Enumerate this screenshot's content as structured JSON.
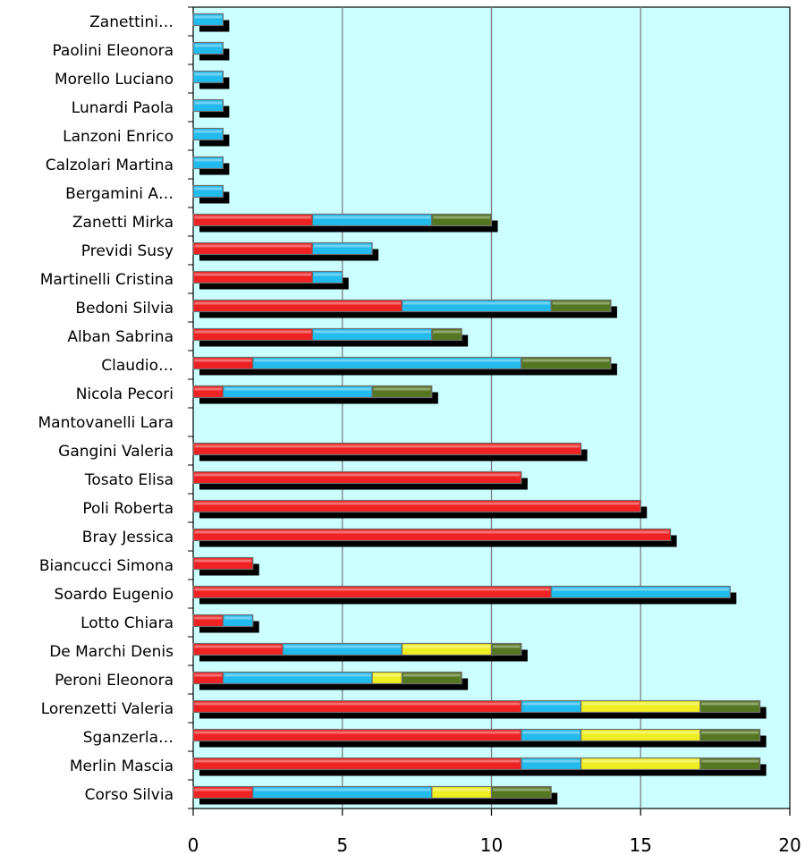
{
  "chart_data": {
    "type": "bar",
    "orientation": "horizontal",
    "stacked": true,
    "title": "",
    "xlabel": "",
    "ylabel": "",
    "xlim": [
      0,
      20
    ],
    "x_ticks": [
      "0",
      "5",
      "10",
      "15",
      "20"
    ],
    "grid": "vertical",
    "legend": "none",
    "plot_background": "#ccffff",
    "categories": [
      "Zanettini…",
      "Paolini Eleonora",
      "Morello Luciano",
      "Lunardi Paola",
      "Lanzoni Enrico",
      "Calzolari Martina",
      "Bergamini A…",
      "Zanetti Mirka",
      "Previdi Susy",
      "Martinelli Cristina",
      "Bedoni Silvia",
      "Alban Sabrina",
      "Claudio…",
      "Nicola Pecori",
      "Mantovanelli Lara",
      "Gangini Valeria",
      "Tosato Elisa",
      "Poli Roberta",
      "Bray Jessica",
      "Biancucci Simona",
      "Soardo Eugenio",
      "Lotto Chiara",
      "De Marchi Denis",
      "Peroni Eleonora",
      "Lorenzetti Valeria",
      "Sganzerla…",
      "Merlin Mascia",
      "Corso Silvia"
    ],
    "series": [
      {
        "color": "#ee2222",
        "values": [
          0,
          0,
          0,
          0,
          0,
          0,
          0,
          4,
          4,
          4,
          7,
          4,
          2,
          1,
          0,
          13,
          11,
          15,
          16,
          2,
          12,
          1,
          3,
          1,
          11,
          11,
          11,
          2
        ]
      },
      {
        "color": "#22bbee",
        "values": [
          1,
          1,
          1,
          1,
          1,
          1,
          1,
          4,
          2,
          1,
          5,
          4,
          9,
          5,
          0,
          0,
          0,
          0,
          0,
          0,
          6,
          1,
          4,
          5,
          2,
          2,
          2,
          6
        ]
      },
      {
        "color": "#eeee22",
        "values": [
          0,
          0,
          0,
          0,
          0,
          0,
          0,
          0,
          0,
          0,
          0,
          0,
          0,
          0,
          0,
          0,
          0,
          0,
          0,
          0,
          0,
          0,
          3,
          1,
          4,
          4,
          4,
          2
        ]
      },
      {
        "color": "#557722",
        "values": [
          0,
          0,
          0,
          0,
          0,
          0,
          0,
          2,
          0,
          0,
          2,
          1,
          3,
          2,
          0,
          0,
          0,
          0,
          0,
          0,
          0,
          0,
          1,
          2,
          2,
          2,
          2,
          2
        ]
      }
    ]
  }
}
